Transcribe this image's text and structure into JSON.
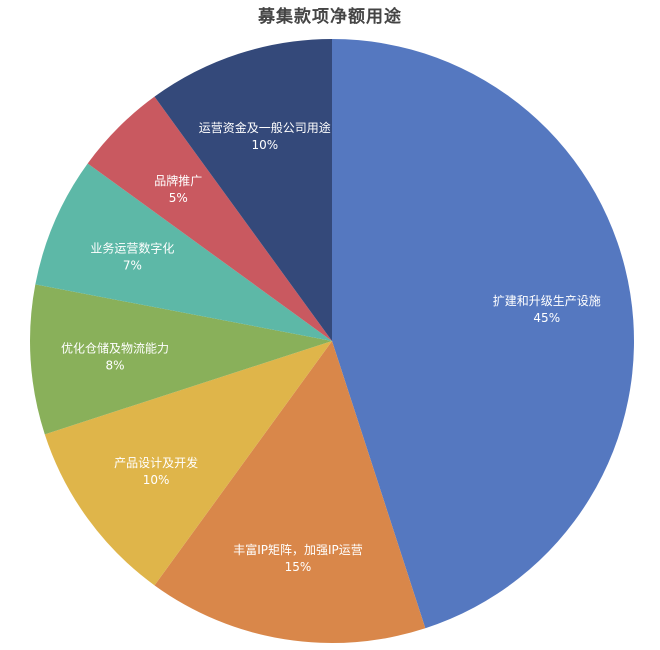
{
  "chart_data": {
    "type": "pie",
    "title": "募集款项净额用途",
    "slices": [
      {
        "label": "扩建和升级生产设施",
        "value_label": "45%",
        "value": 45,
        "color": "#5578c0"
      },
      {
        "label": "丰富IP矩阵，加强IP运营",
        "value_label": "15%",
        "value": 15,
        "color": "#d9874a"
      },
      {
        "label": "产品设计及开发",
        "value_label": "10%",
        "value": 10,
        "color": "#dfb54a"
      },
      {
        "label": "优化仓储及物流能力",
        "value_label": "8%",
        "value": 8,
        "color": "#89b05a"
      },
      {
        "label": "业务运营数字化",
        "value_label": "7%",
        "value": 7,
        "color": "#5db8a7"
      },
      {
        "label": "品牌推广",
        "value_label": "5%",
        "value": 5,
        "color": "#c95960"
      },
      {
        "label": "运营资金及一般公司用途",
        "value_label": "10%",
        "value": 10,
        "color": "#34497a"
      }
    ]
  }
}
